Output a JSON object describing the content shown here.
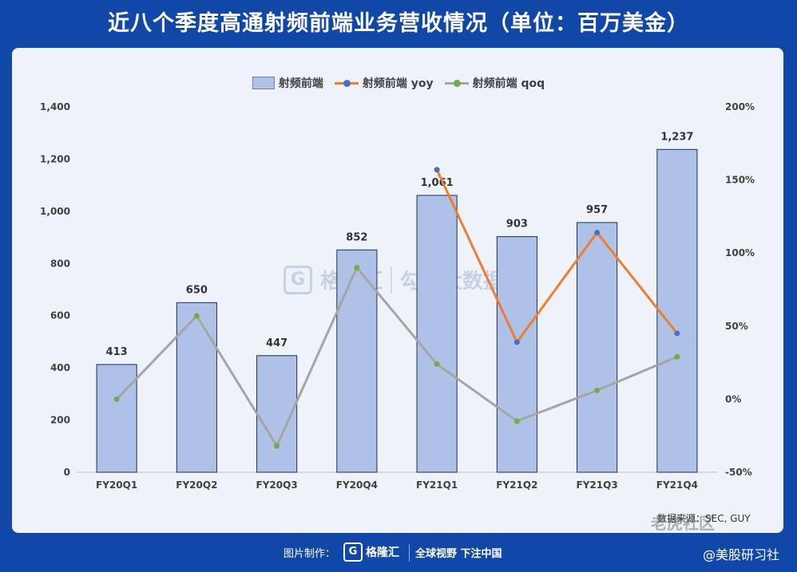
{
  "title": "近八个季度高通射频前端业务营收情况（单位：百万美金）",
  "legend": {
    "bar": "射频前端",
    "yoy": "射频前端  yoy",
    "qoq": "射频前端  qoq"
  },
  "colors": {
    "background": "#1148a8",
    "card": "#edf3f8",
    "bar_fill": "#adc2e6",
    "bar_stroke": "#1f2f4f",
    "yoy_line": "#ed7d31",
    "yoy_marker": "#4472c4",
    "qoq_line": "#a5a5a5",
    "qoq_marker": "#70ad47"
  },
  "chart_data": {
    "type": "bar",
    "categories": [
      "FY20Q1",
      "FY20Q2",
      "FY20Q3",
      "FY20Q4",
      "FY21Q1",
      "FY21Q2",
      "FY21Q3",
      "FY21Q4"
    ],
    "series": [
      {
        "name": "射频前端",
        "type": "bar",
        "axis": "left",
        "values": [
          413,
          650,
          447,
          852,
          1061,
          903,
          957,
          1237
        ],
        "labels": [
          "413",
          "650",
          "447",
          "852",
          "1,061",
          "903",
          "957",
          "1,237"
        ]
      },
      {
        "name": "射频前端  yoy",
        "type": "line",
        "axis": "right",
        "values": [
          null,
          null,
          null,
          null,
          157,
          39,
          114,
          45
        ]
      },
      {
        "name": "射频前端  qoq",
        "type": "line",
        "axis": "right",
        "values": [
          0,
          57,
          -32,
          90,
          24,
          -15,
          6,
          29
        ]
      }
    ],
    "y_left": {
      "range": [
        0,
        1400
      ],
      "ticks": [
        0,
        200,
        400,
        600,
        800,
        1000,
        1200,
        1400
      ],
      "tick_labels": [
        "0",
        "200",
        "400",
        "600",
        "800",
        "1,000",
        "1,200",
        "1,400"
      ]
    },
    "y_right": {
      "range": [
        -50,
        200
      ],
      "ticks": [
        -50,
        0,
        50,
        100,
        150,
        200
      ],
      "tick_labels": [
        "-50%",
        "0%",
        "50%",
        "100%",
        "150%",
        "200%"
      ]
    },
    "legend_position": "top",
    "grid": false
  },
  "watermark": {
    "mark": "G",
    "brand": "格隆汇",
    "brand2": "勾股大数据",
    "corner": "老虎社区"
  },
  "source": "数据来源：SEC, GUY",
  "footer": {
    "made_by": "图片制作：",
    "logo_mark": "G",
    "logo_text": "格隆汇",
    "slogan": "全球视野 下注中国",
    "credit": "@美股研习社"
  }
}
